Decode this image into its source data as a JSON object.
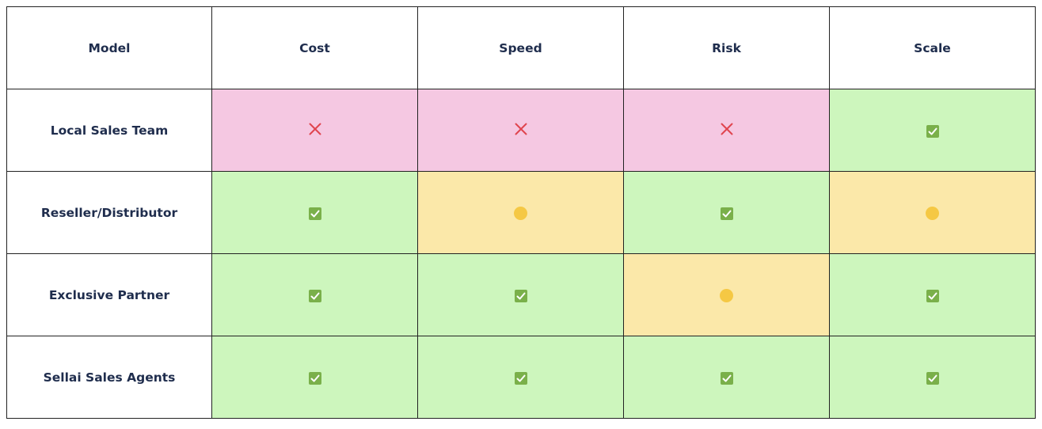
{
  "chart_data": {
    "type": "table",
    "columns": [
      "Model",
      "Cost",
      "Speed",
      "Risk",
      "Scale"
    ],
    "rows": [
      {
        "model": "Local Sales Team",
        "values": [
          "no",
          "no",
          "no",
          "yes"
        ]
      },
      {
        "model": "Reseller/Distributor",
        "values": [
          "yes",
          "partial",
          "yes",
          "partial"
        ]
      },
      {
        "model": "Exclusive Partner",
        "values": [
          "yes",
          "yes",
          "partial",
          "yes"
        ]
      },
      {
        "model": "Sellai Sales Agents",
        "values": [
          "yes",
          "yes",
          "yes",
          "yes"
        ]
      }
    ],
    "legend_symbols": {
      "yes": "check-box-icon",
      "no": "cross-icon",
      "partial": "circle-dot-icon"
    },
    "colors": {
      "yes": "#cdf6bd",
      "no": "#f5c8e2",
      "partial": "#fbe8a9",
      "check": "#7ab04a",
      "cross": "#e0454f",
      "dot": "#f5c844",
      "header_text": "#1f2d4d"
    }
  }
}
